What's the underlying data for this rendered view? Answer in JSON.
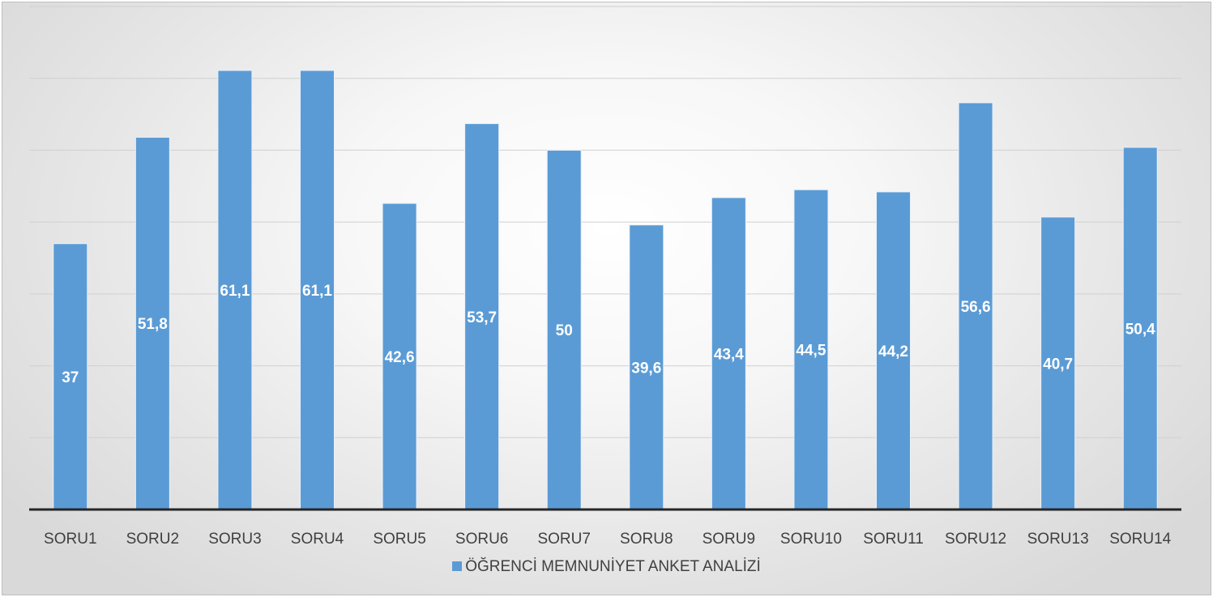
{
  "chart_data": {
    "type": "bar",
    "title": "",
    "xlabel": "",
    "ylabel": "",
    "categories": [
      "SORU1",
      "SORU2",
      "SORU3",
      "SORU4",
      "SORU5",
      "SORU6",
      "SORU7",
      "SORU8",
      "SORU9",
      "SORU10",
      "SORU11",
      "SORU12",
      "SORU13",
      "SORU14"
    ],
    "series": [
      {
        "name": "ÖĞRENCİ MEMNUNİYET ANKET ANALİZİ",
        "values": [
          37,
          51.8,
          61.1,
          61.1,
          42.6,
          53.7,
          50,
          39.6,
          43.4,
          44.5,
          44.2,
          56.6,
          40.7,
          50.4
        ],
        "labels": [
          "37",
          "51,8",
          "61,1",
          "61,1",
          "42,6",
          "53,7",
          "50",
          "39,6",
          "43,4",
          "44,5",
          "44,2",
          "56,6",
          "40,7",
          "50,4"
        ],
        "color": "#5b9bd5"
      }
    ],
    "ylim": [
      0,
      70
    ],
    "gridlines": [
      10,
      20,
      30,
      40,
      50,
      60,
      70
    ],
    "grid": true,
    "y_tick_labels_visible": false,
    "legend": "bottom",
    "data_label_position": "center"
  }
}
